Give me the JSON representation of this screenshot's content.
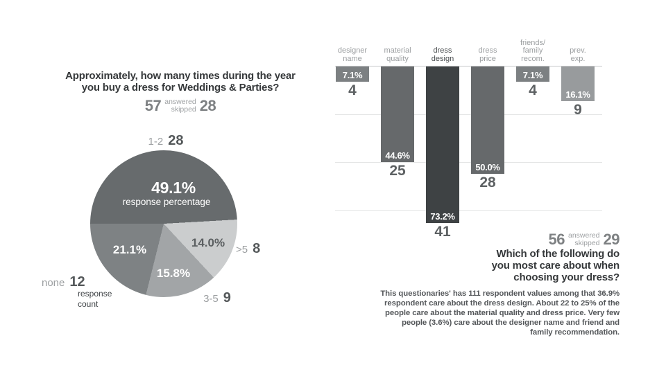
{
  "page": {
    "background": "#ffffff"
  },
  "answered_label": "answered",
  "skipped_label": "skipped",
  "chart_data": [
    {
      "type": "pie",
      "title": "Approximately, how many times during the year\nyou buy a dress for Weddings & Parties?",
      "answered": "57",
      "skipped": "28",
      "center_caption": "response percentage",
      "count_caption": "response\ncount",
      "start_angle_deg": 270,
      "legend_position": "around-slices",
      "slices": [
        {
          "label": "1-2",
          "count": "28",
          "pct": 49.1,
          "pct_label": "49.1%",
          "color": "#676b6d"
        },
        {
          "label": ">5",
          "count": "8",
          "pct": 14.0,
          "pct_label": "14.0%",
          "color": "#cbcdce"
        },
        {
          "label": "3-5",
          "count": "9",
          "pct": 15.8,
          "pct_label": "15.8%",
          "color": "#a2a5a7"
        },
        {
          "label": "none",
          "count": "12",
          "pct": 21.1,
          "pct_label": "21.1%",
          "color": "#7e8284"
        }
      ]
    },
    {
      "type": "bar",
      "orientation": "hanging-top-down",
      "title": "Which of the following do\nyou most care about when\nchoosing your dress?",
      "answered": "56",
      "skipped": "29",
      "ylim_pct": [
        0,
        80
      ],
      "grid": true,
      "gridlines_at_pct": [
        22.3,
        44.6,
        66.9
      ],
      "categories": [
        {
          "label": "designer\nname",
          "label_color": "#9b9ea0",
          "pct": 7.1,
          "pct_label": "7.1%",
          "count": "4",
          "color": "#7c8082"
        },
        {
          "label": "material\nquality",
          "label_color": "#9b9ea0",
          "pct": 44.6,
          "pct_label": "44.6%",
          "count": "25",
          "color": "#66696b"
        },
        {
          "label": "dress\ndesign",
          "label_color": "#474b4d",
          "pct": 73.2,
          "pct_label": "73.2%",
          "count": "41",
          "color": "#3e4244"
        },
        {
          "label": "dress\nprice",
          "label_color": "#9b9ea0",
          "pct": 50.0,
          "pct_label": "50.0%",
          "count": "28",
          "color": "#66696b"
        },
        {
          "label": "friends/\nfamily\nrecom.",
          "label_color": "#9b9ea0",
          "pct": 7.1,
          "pct_label": "7.1%",
          "count": "4",
          "color": "#7c8082"
        },
        {
          "label": "prev.\nexp.",
          "label_color": "#9b9ea0",
          "pct": 16.1,
          "pct_label": "16.1%",
          "count": "9",
          "color": "#989b9d"
        }
      ],
      "note": "This questionaries' has 111 respondent values among that 36.9%\nrespondent care about the dress design. About 22 to 25% of the\npeople care about the material quality and dress price. Very few\npeople (3.6%) care about the designer name and friend and\nfamily recommendation."
    }
  ]
}
